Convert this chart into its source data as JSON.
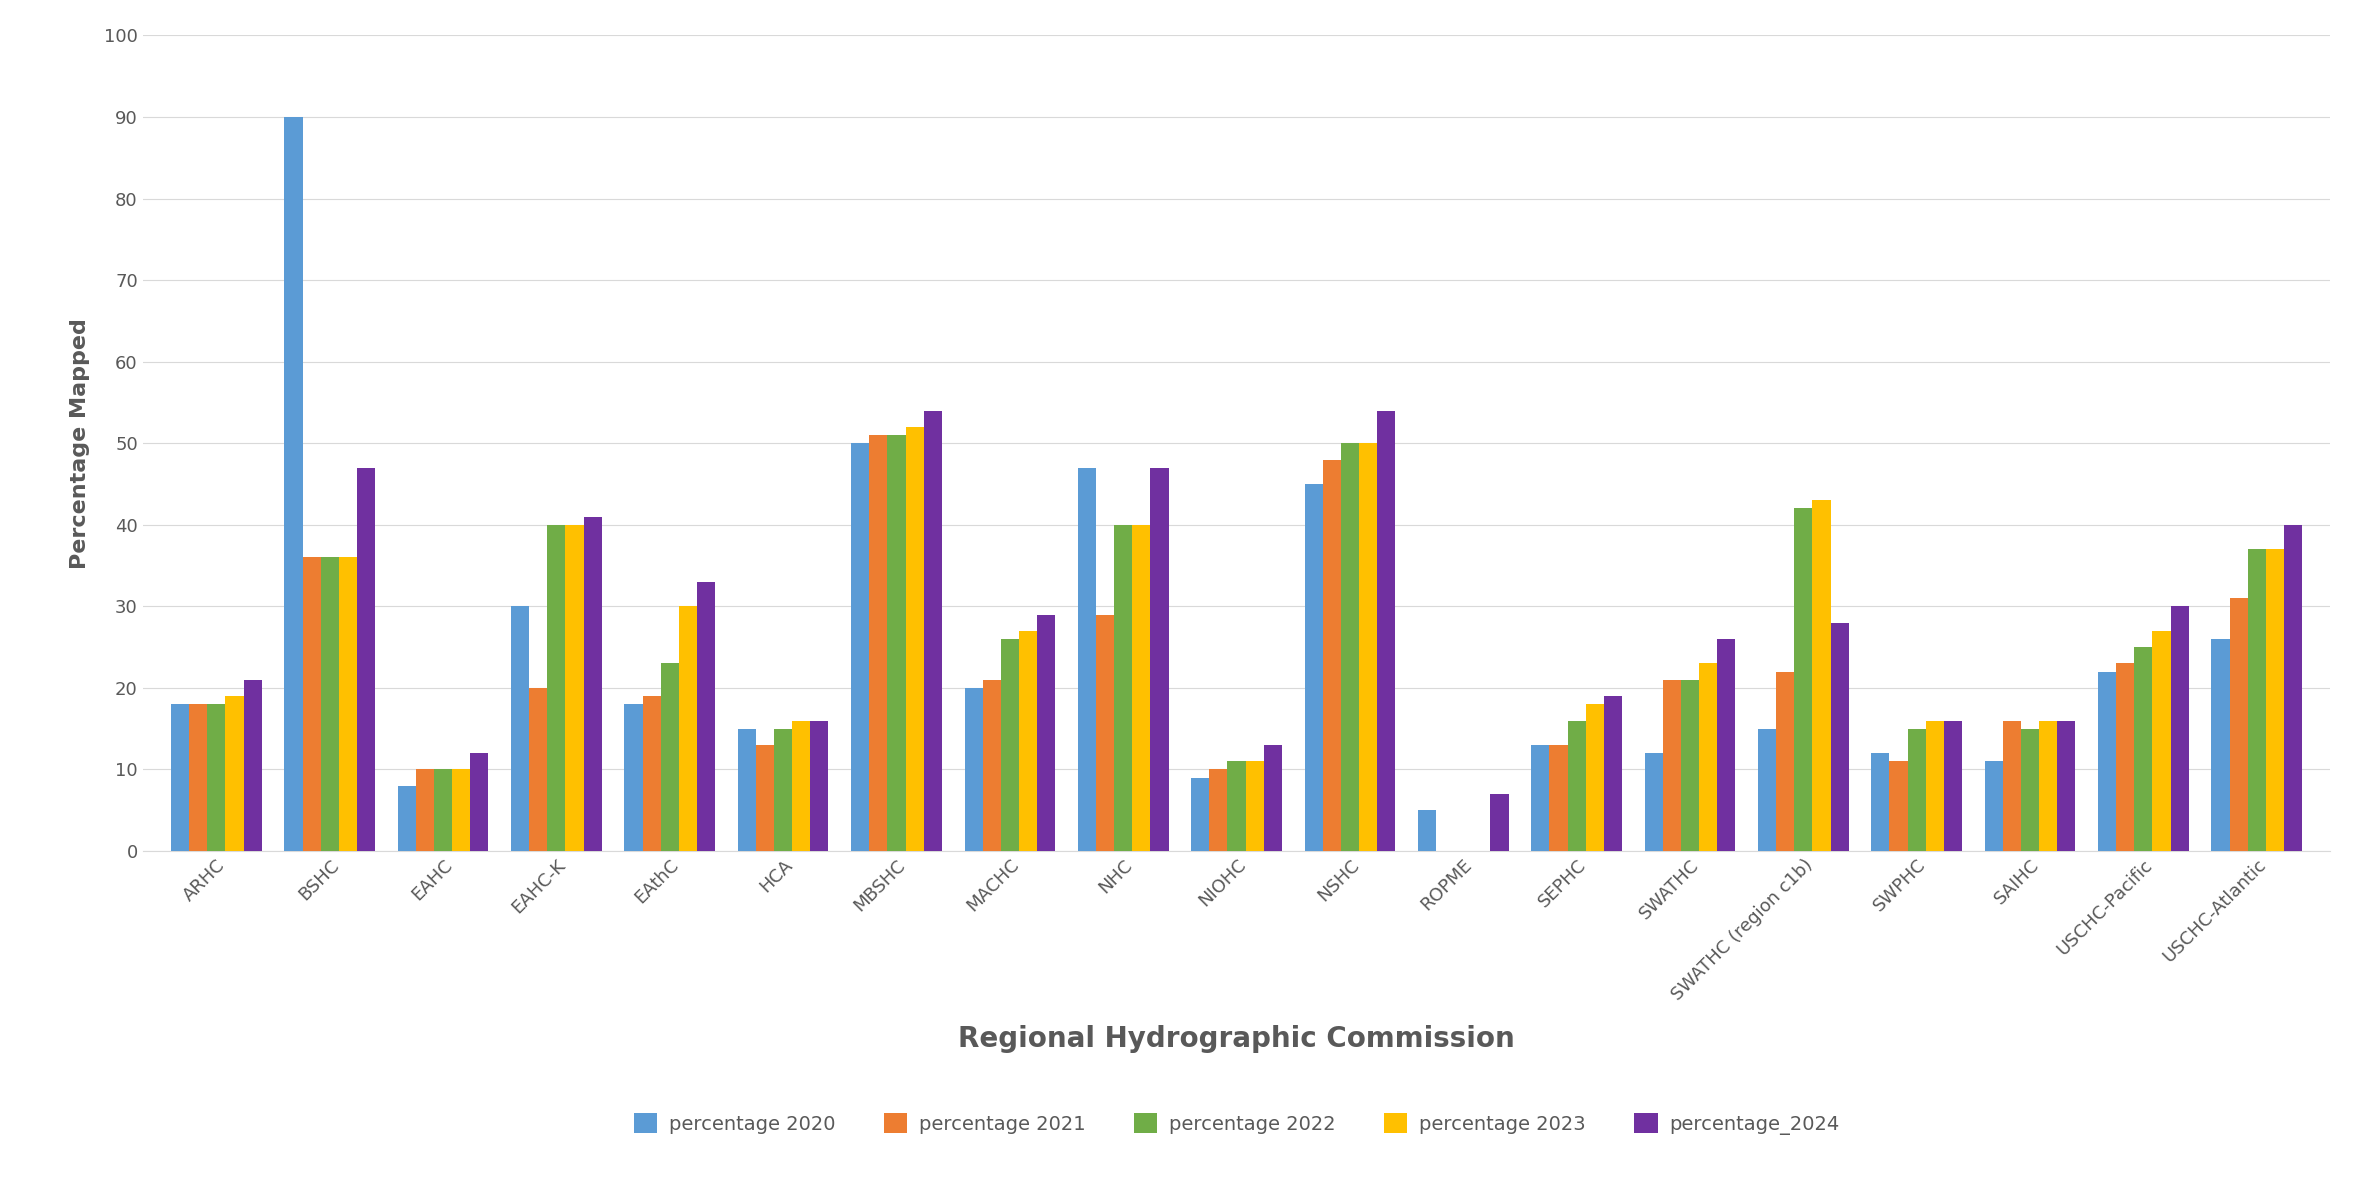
{
  "categories": [
    "ARHC",
    "BSHC",
    "EAHC",
    "EAHC-K",
    "EAthC",
    "HCA",
    "MBSHC",
    "MACHC",
    "NHC",
    "NIOHC",
    "NSHC",
    "ROPME",
    "SEPHC",
    "SWATHC",
    "SWATHC (region c1b)",
    "SWPHC",
    "SAIHC",
    "USCHC-Pacific",
    "USCHC-Atlantic"
  ],
  "series": {
    "percentage 2020": [
      18,
      90,
      8,
      30,
      18,
      15,
      50,
      20,
      47,
      9,
      45,
      5,
      13,
      12,
      15,
      12,
      11,
      22,
      26
    ],
    "percentage 2021": [
      18,
      36,
      10,
      20,
      19,
      13,
      51,
      21,
      29,
      10,
      48,
      0,
      13,
      21,
      22,
      11,
      16,
      23,
      31
    ],
    "percentage 2022": [
      18,
      36,
      10,
      40,
      23,
      15,
      51,
      26,
      40,
      11,
      50,
      0,
      16,
      21,
      42,
      15,
      15,
      25,
      37
    ],
    "percentage 2023": [
      19,
      36,
      10,
      40,
      30,
      16,
      52,
      27,
      40,
      11,
      50,
      0,
      18,
      23,
      43,
      16,
      16,
      27,
      37
    ],
    "percentage_2024": [
      21,
      47,
      12,
      41,
      33,
      16,
      54,
      29,
      47,
      13,
      54,
      7,
      19,
      26,
      28,
      16,
      16,
      30,
      40
    ]
  },
  "none_flags": {
    "percentage 2021": [
      false,
      false,
      false,
      false,
      false,
      false,
      false,
      false,
      false,
      false,
      false,
      true,
      false,
      false,
      false,
      false,
      false,
      false,
      false
    ],
    "percentage 2022": [
      false,
      false,
      false,
      false,
      false,
      false,
      false,
      false,
      false,
      false,
      false,
      true,
      false,
      false,
      false,
      false,
      false,
      false,
      false
    ],
    "percentage 2023": [
      false,
      false,
      false,
      false,
      false,
      false,
      false,
      false,
      false,
      false,
      false,
      true,
      false,
      false,
      false,
      false,
      false,
      false,
      false
    ]
  },
  "colors": {
    "percentage 2020": "#5B9BD5",
    "percentage 2021": "#ED7D31",
    "percentage 2022": "#70AD47",
    "percentage 2023": "#FFC000",
    "percentage_2024": "#7030A0"
  },
  "ylabel": "Percentage Mapped",
  "xlabel": "Regional Hydrographic Commission",
  "ylim": [
    0,
    100
  ],
  "yticks": [
    0,
    10,
    20,
    30,
    40,
    50,
    60,
    70,
    80,
    90,
    100
  ],
  "bar_width": 0.16,
  "figsize": [
    23.78,
    11.82
  ],
  "dpi": 100,
  "background_color": "#ffffff",
  "grid_color": "#d9d9d9",
  "text_color": "#595959",
  "xlabel_fontsize": 20,
  "ylabel_fontsize": 16,
  "tick_fontsize": 13,
  "legend_fontsize": 14
}
